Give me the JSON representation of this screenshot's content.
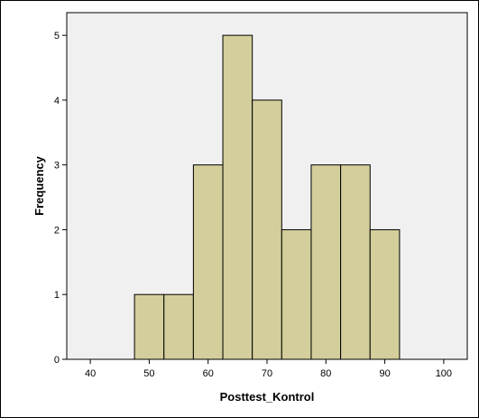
{
  "chart_data": {
    "type": "bar",
    "subtype": "histogram",
    "xlabel": "Posttest_Kontrol",
    "ylabel": "Frequency",
    "xlim": [
      36,
      104
    ],
    "ylim": [
      0,
      5.35
    ],
    "x_ticks": [
      40,
      50,
      60,
      70,
      80,
      90,
      100
    ],
    "y_ticks": [
      0,
      1,
      2,
      3,
      4,
      5
    ],
    "bins": [
      {
        "start": 47.5,
        "end": 52.5,
        "count": 1
      },
      {
        "start": 52.5,
        "end": 57.5,
        "count": 1
      },
      {
        "start": 57.5,
        "end": 62.5,
        "count": 3
      },
      {
        "start": 62.5,
        "end": 67.5,
        "count": 5
      },
      {
        "start": 67.5,
        "end": 72.5,
        "count": 4
      },
      {
        "start": 72.5,
        "end": 77.5,
        "count": 2
      },
      {
        "start": 77.5,
        "end": 82.5,
        "count": 3
      },
      {
        "start": 82.5,
        "end": 87.5,
        "count": 3
      },
      {
        "start": 87.5,
        "end": 92.5,
        "count": 2
      }
    ],
    "grid": false,
    "colors": {
      "plot_background": "#f0f0f0",
      "bar_fill": "#d3ce9b",
      "bar_stroke": "#000000"
    }
  }
}
